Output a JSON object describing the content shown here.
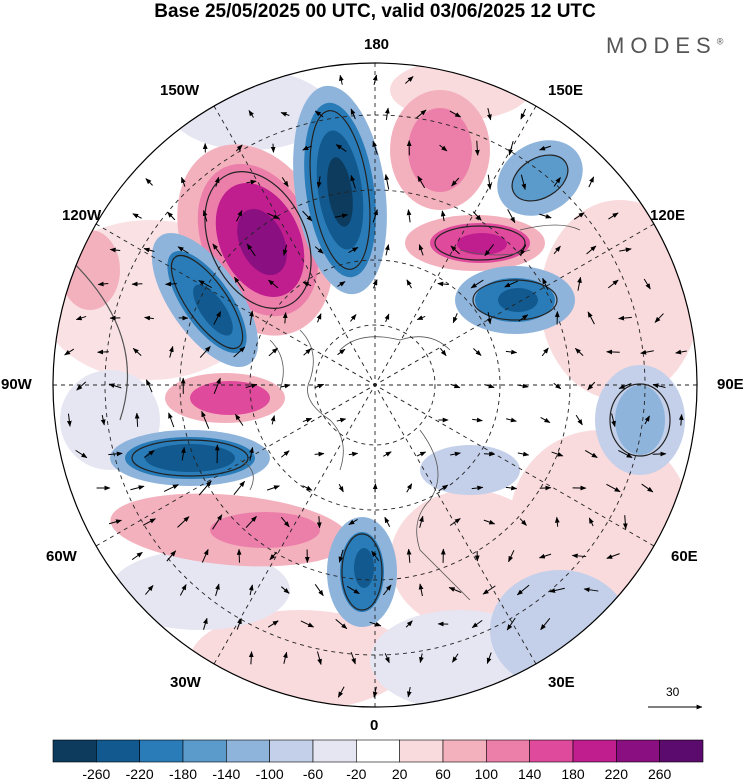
{
  "header": {
    "title": "Base 25/05/2025 00 UTC, valid 03/06/2025 12 UTC",
    "brand": "MODES",
    "brand_mark": "®"
  },
  "map": {
    "projection": "north-polar-stereographic",
    "longitude_labels": {
      "top": "180",
      "top_left": "150W",
      "top_right": "150E",
      "upper_left": "120W",
      "upper_right": "120E",
      "left": "90W",
      "right": "90E",
      "lower_left": "60W",
      "lower_right": "60E",
      "bottom_left": "30W",
      "bottom_right": "30E",
      "bottom": "0"
    },
    "vector_reference": {
      "value": "30"
    }
  },
  "colorbar": {
    "labels": [
      "-260",
      "-220",
      "-180",
      "-140",
      "-100",
      "-60",
      "-20",
      "20",
      "60",
      "100",
      "140",
      "180",
      "220",
      "260"
    ],
    "colors": [
      "#0c3b5e",
      "#11598f",
      "#2a7cb8",
      "#5b9bcc",
      "#8fb4dc",
      "#c4cfe9",
      "#e6e6f3",
      "#ffffff",
      "#f9dadd",
      "#f3b1bd",
      "#ec7faa",
      "#e04a9c",
      "#c01d8f",
      "#8a0f80",
      "#5b0a6e"
    ]
  }
}
